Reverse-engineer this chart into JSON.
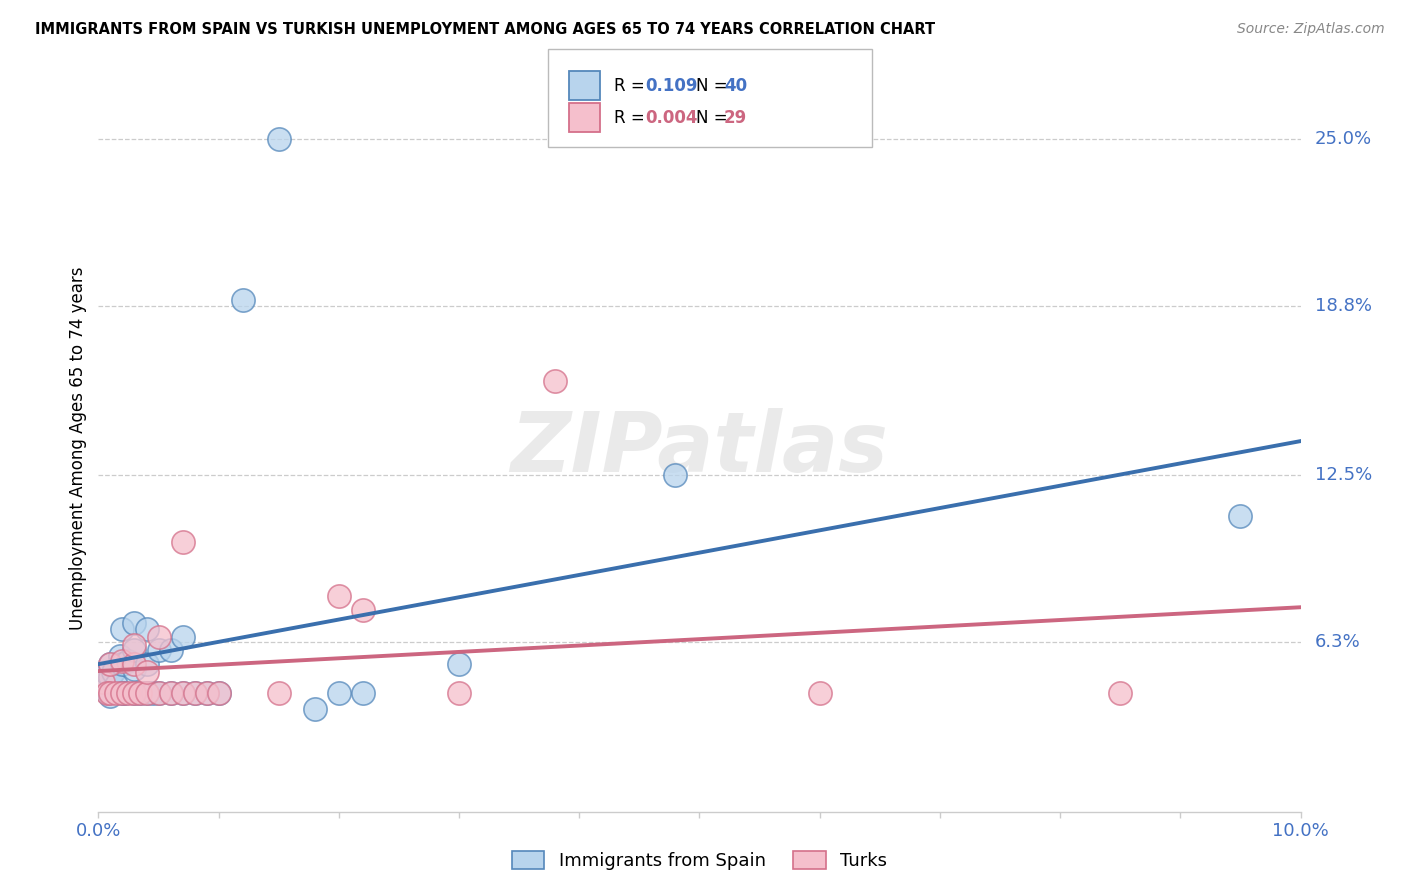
{
  "title": "IMMIGRANTS FROM SPAIN VS TURKISH UNEMPLOYMENT AMONG AGES 65 TO 74 YEARS CORRELATION CHART",
  "source": "Source: ZipAtlas.com",
  "ylabel": "Unemployment Among Ages 65 to 74 years",
  "xlim": [
    0.0,
    0.1
  ],
  "ylim": [
    0.0,
    0.27
  ],
  "ytick_vals": [
    0.063,
    0.125,
    0.188,
    0.25
  ],
  "ytick_labels": [
    "6.3%",
    "12.5%",
    "18.8%",
    "25.0%"
  ],
  "xtick_positions": [
    0.0,
    0.01,
    0.02,
    0.03,
    0.04,
    0.05,
    0.06,
    0.07,
    0.08,
    0.09,
    0.1
  ],
  "xtick_labels": [
    "0.0%",
    "",
    "",
    "",
    "",
    "",
    "",
    "",
    "",
    "",
    "10.0%"
  ],
  "blue_color_fill": "#b8d4ed",
  "blue_color_edge": "#5588bb",
  "pink_color_fill": "#f5bfcc",
  "pink_color_edge": "#d4708a",
  "blue_line_color": "#3a6fad",
  "pink_line_color": "#cc6680",
  "blue_R": "0.109",
  "blue_N": "40",
  "pink_R": "0.004",
  "pink_N": "29",
  "legend_label_blue": "Immigrants from Spain",
  "legend_label_pink": "Turks",
  "watermark": "ZIPatlas",
  "blue_x": [
    0.0004,
    0.0006,
    0.0008,
    0.001,
    0.001,
    0.001,
    0.0012,
    0.0015,
    0.0018,
    0.002,
    0.002,
    0.002,
    0.0022,
    0.0025,
    0.003,
    0.003,
    0.003,
    0.003,
    0.0035,
    0.004,
    0.004,
    0.004,
    0.0045,
    0.005,
    0.005,
    0.006,
    0.006,
    0.007,
    0.007,
    0.008,
    0.009,
    0.01,
    0.012,
    0.015,
    0.018,
    0.02,
    0.022,
    0.03,
    0.048,
    0.095
  ],
  "blue_y": [
    0.048,
    0.052,
    0.044,
    0.05,
    0.055,
    0.043,
    0.052,
    0.047,
    0.058,
    0.044,
    0.055,
    0.068,
    0.044,
    0.056,
    0.044,
    0.053,
    0.06,
    0.07,
    0.044,
    0.044,
    0.055,
    0.068,
    0.044,
    0.044,
    0.06,
    0.044,
    0.06,
    0.044,
    0.065,
    0.044,
    0.044,
    0.044,
    0.19,
    0.25,
    0.038,
    0.044,
    0.044,
    0.055,
    0.125,
    0.11
  ],
  "pink_x": [
    0.0004,
    0.0007,
    0.001,
    0.001,
    0.0015,
    0.002,
    0.002,
    0.0025,
    0.003,
    0.003,
    0.003,
    0.0035,
    0.004,
    0.004,
    0.005,
    0.005,
    0.006,
    0.007,
    0.007,
    0.008,
    0.009,
    0.01,
    0.015,
    0.02,
    0.022,
    0.03,
    0.038,
    0.06,
    0.085
  ],
  "pink_y": [
    0.048,
    0.044,
    0.044,
    0.055,
    0.044,
    0.044,
    0.056,
    0.044,
    0.044,
    0.055,
    0.062,
    0.044,
    0.044,
    0.052,
    0.044,
    0.065,
    0.044,
    0.044,
    0.1,
    0.044,
    0.044,
    0.044,
    0.044,
    0.08,
    0.075,
    0.044,
    0.16,
    0.044,
    0.044
  ]
}
